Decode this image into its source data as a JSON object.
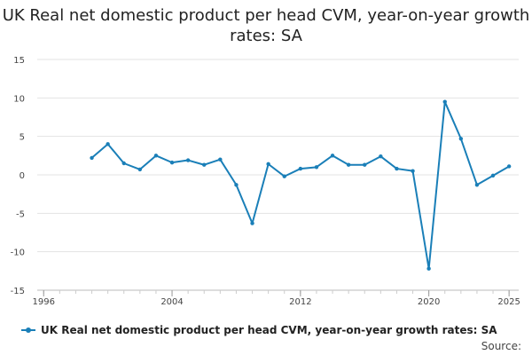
{
  "chart_data": {
    "type": "line",
    "title": "UK Real net domestic product per head CVM, year-on-year growth rates: SA",
    "xlabel": "",
    "ylabel": "",
    "xlim": [
      1995.6,
      2025.6
    ],
    "ylim": [
      -15,
      15
    ],
    "yticks": [
      15,
      10,
      5,
      0,
      -5,
      -10,
      -15
    ],
    "xticks": [
      1996,
      2004,
      2012,
      2020,
      2025
    ],
    "grid": true,
    "series": [
      {
        "name": "UK Real net domestic product per head CVM, year-on-year growth rates: SA",
        "color": "#1a7fb8",
        "x": [
          1999,
          2000,
          2001,
          2002,
          2003,
          2004,
          2005,
          2006,
          2007,
          2008,
          2009,
          2010,
          2011,
          2012,
          2013,
          2014,
          2015,
          2016,
          2017,
          2018,
          2019,
          2020,
          2021,
          2022,
          2023,
          2024,
          2025
        ],
        "values": [
          2.2,
          4.0,
          1.5,
          0.7,
          2.5,
          1.6,
          1.9,
          1.3,
          2.0,
          -1.3,
          -6.3,
          1.4,
          -0.2,
          0.8,
          1.0,
          2.5,
          1.3,
          1.3,
          2.4,
          0.8,
          0.5,
          -12.2,
          9.5,
          4.7,
          -1.3,
          -0.1,
          1.1
        ]
      }
    ]
  },
  "legend": {
    "label": "UK Real net domestic product per head CVM, year-on-year growth rates: SA"
  },
  "footer": {
    "source": "Source:"
  }
}
